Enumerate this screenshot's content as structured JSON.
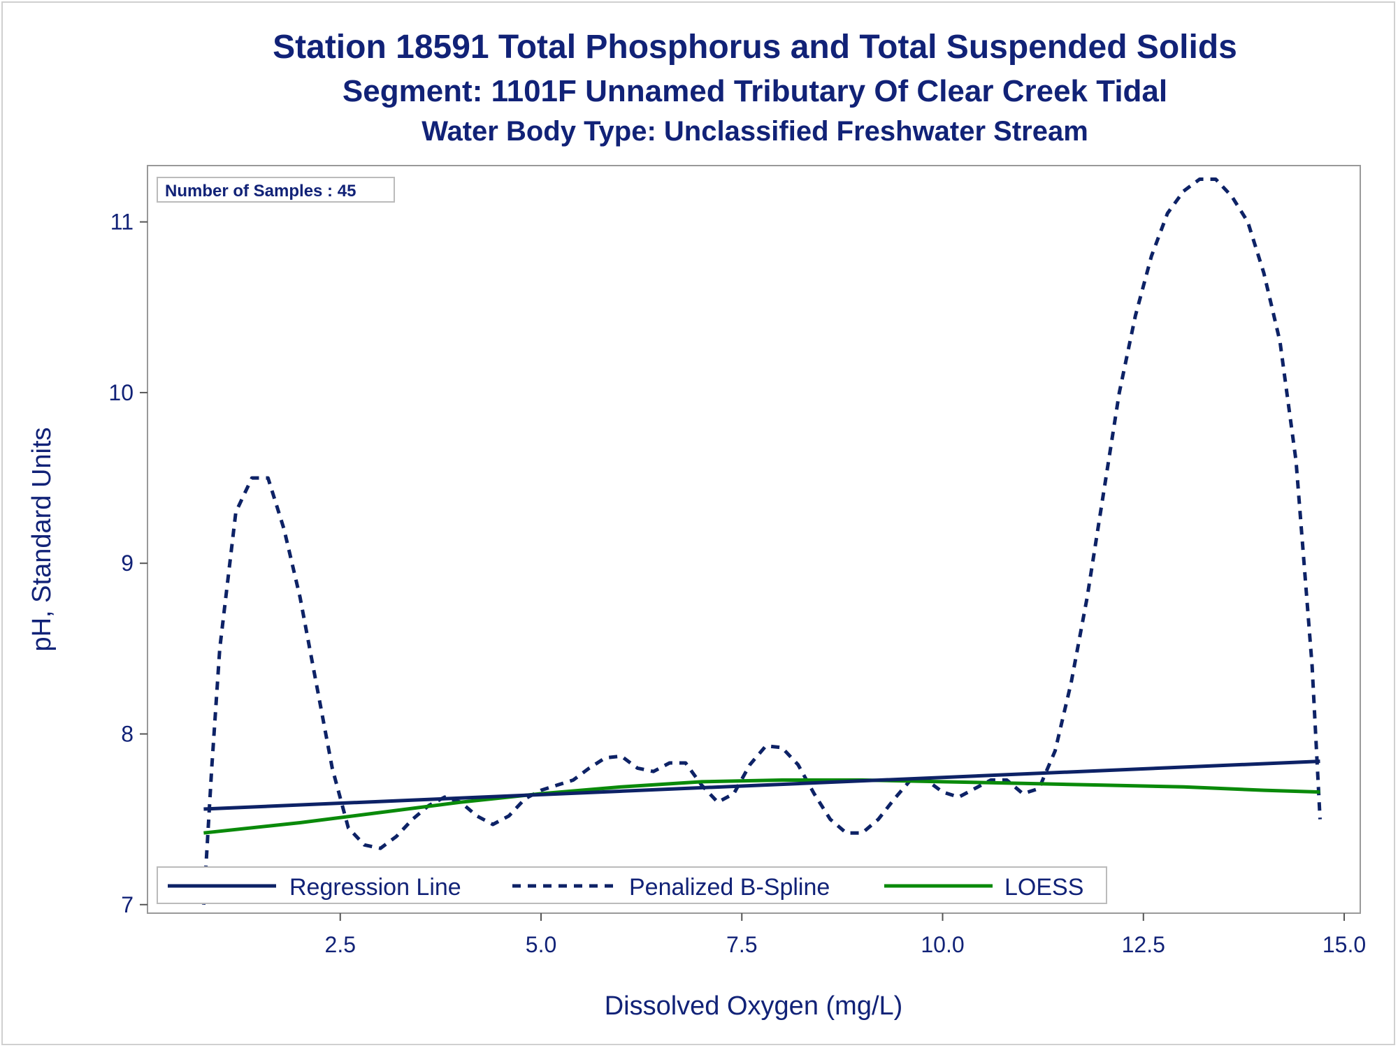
{
  "title": "Station 18591  Total Phosphorus and Total Suspended Solids",
  "subtitle": "Segment: 1101F  Unnamed Tributary Of Clear Creek Tidal",
  "subtitle2": "Water Body Type: Unclassified Freshwater Stream",
  "inset": "Number of Samples : 45",
  "colors": {
    "text": "#112277",
    "regression": "#0d2266",
    "spline": "#0d2266",
    "loess": "#0a8a0a",
    "frame": "#999999"
  },
  "chart_data": {
    "type": "line",
    "xlabel": "Dissolved Oxygen (mg/L)",
    "ylabel": "pH, Standard Units",
    "xlim": [
      0.1,
      15.2
    ],
    "ylim": [
      6.95,
      11.33
    ],
    "xticks": [
      2.5,
      5.0,
      7.5,
      10.0,
      12.5,
      15.0
    ],
    "xtick_labels": [
      "2.5",
      "5.0",
      "7.5",
      "10.0",
      "12.5",
      "15.0"
    ],
    "yticks": [
      7,
      8,
      9,
      10,
      11
    ],
    "ytick_labels": [
      "7",
      "8",
      "9",
      "10",
      "11"
    ],
    "grid": false,
    "legend_position": "bottom-left inside",
    "series": [
      {
        "name": "Regression Line",
        "style": "solid",
        "x": [
          0.8,
          14.7
        ],
        "y": [
          7.56,
          7.84
        ]
      },
      {
        "name": "Penalized B-Spline",
        "style": "dashed",
        "x": [
          0.8,
          0.9,
          1.0,
          1.2,
          1.4,
          1.6,
          1.8,
          2.0,
          2.2,
          2.4,
          2.6,
          2.8,
          3.0,
          3.2,
          3.4,
          3.6,
          3.8,
          4.0,
          4.2,
          4.4,
          4.6,
          4.8,
          5.0,
          5.2,
          5.4,
          5.6,
          5.8,
          6.0,
          6.2,
          6.4,
          6.6,
          6.8,
          7.0,
          7.2,
          7.4,
          7.6,
          7.8,
          8.0,
          8.2,
          8.4,
          8.6,
          8.8,
          9.0,
          9.2,
          9.4,
          9.6,
          9.8,
          10.0,
          10.2,
          10.4,
          10.6,
          10.8,
          11.0,
          11.2,
          11.4,
          11.6,
          11.8,
          12.0,
          12.2,
          12.4,
          12.6,
          12.8,
          13.0,
          13.2,
          13.4,
          13.6,
          13.8,
          14.0,
          14.2,
          14.4,
          14.6,
          14.7
        ],
        "y": [
          7.0,
          7.8,
          8.5,
          9.3,
          9.5,
          9.5,
          9.2,
          8.8,
          8.3,
          7.8,
          7.45,
          7.35,
          7.33,
          7.4,
          7.5,
          7.58,
          7.63,
          7.6,
          7.52,
          7.47,
          7.52,
          7.62,
          7.67,
          7.7,
          7.73,
          7.8,
          7.86,
          7.87,
          7.8,
          7.78,
          7.83,
          7.83,
          7.7,
          7.6,
          7.65,
          7.82,
          7.93,
          7.92,
          7.82,
          7.65,
          7.5,
          7.42,
          7.42,
          7.5,
          7.62,
          7.73,
          7.73,
          7.66,
          7.63,
          7.68,
          7.73,
          7.73,
          7.65,
          7.68,
          7.9,
          8.3,
          8.8,
          9.4,
          10.0,
          10.45,
          10.8,
          11.05,
          11.18,
          11.25,
          11.25,
          11.15,
          11.0,
          10.7,
          10.3,
          9.6,
          8.4,
          7.5
        ]
      },
      {
        "name": "LOESS",
        "style": "solid",
        "x": [
          0.8,
          2.0,
          3.0,
          4.0,
          5.0,
          6.0,
          7.0,
          8.0,
          9.0,
          10.0,
          11.0,
          12.0,
          13.0,
          14.0,
          14.7
        ],
        "y": [
          7.42,
          7.48,
          7.54,
          7.6,
          7.65,
          7.69,
          7.72,
          7.73,
          7.73,
          7.72,
          7.71,
          7.7,
          7.69,
          7.67,
          7.66
        ]
      }
    ]
  }
}
